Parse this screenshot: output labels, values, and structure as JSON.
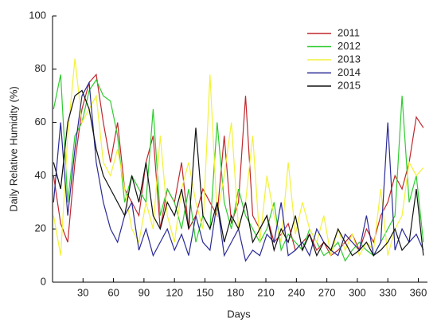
{
  "chart_data": {
    "type": "line",
    "x_label": "Days",
    "y_label": "Daily  Relative Humidity (%)",
    "x": [
      1,
      8,
      15,
      22,
      29,
      36,
      43,
      50,
      57,
      64,
      71,
      78,
      85,
      92,
      99,
      106,
      113,
      120,
      127,
      134,
      141,
      148,
      155,
      162,
      169,
      176,
      183,
      190,
      197,
      204,
      211,
      218,
      225,
      232,
      239,
      246,
      253,
      260,
      267,
      274,
      281,
      288,
      295,
      302,
      309,
      316,
      323,
      330,
      337,
      344,
      351,
      358,
      365
    ],
    "series": [
      {
        "name": "2011",
        "color": "#c0272d",
        "values": [
          40,
          22,
          15,
          45,
          65,
          75,
          78,
          60,
          45,
          60,
          35,
          30,
          25,
          45,
          55,
          20,
          35,
          30,
          45,
          20,
          25,
          35,
          30,
          25,
          55,
          22,
          30,
          70,
          25,
          20,
          25,
          15,
          18,
          22,
          12,
          15,
          18,
          12,
          15,
          10,
          12,
          15,
          18,
          12,
          20,
          15,
          25,
          30,
          40,
          35,
          45,
          62,
          58
        ]
      },
      {
        "name": "2012",
        "color": "#2fcc2f",
        "values": [
          65,
          78,
          30,
          55,
          60,
          72,
          76,
          70,
          68,
          55,
          30,
          40,
          35,
          30,
          65,
          25,
          35,
          30,
          20,
          35,
          15,
          25,
          20,
          60,
          30,
          20,
          35,
          25,
          20,
          15,
          20,
          30,
          12,
          18,
          15,
          12,
          20,
          15,
          10,
          12,
          15,
          8,
          12,
          15,
          12,
          10,
          15,
          20,
          25,
          70,
          30,
          40,
          15
        ]
      },
      {
        "name": "2013",
        "color": "#f2f23a",
        "values": [
          25,
          10,
          55,
          84,
          60,
          65,
          70,
          45,
          40,
          50,
          35,
          20,
          15,
          30,
          20,
          55,
          25,
          15,
          35,
          45,
          30,
          20,
          78,
          25,
          40,
          60,
          20,
          30,
          55,
          15,
          40,
          25,
          15,
          45,
          18,
          30,
          20,
          15,
          25,
          10,
          20,
          12,
          18,
          10,
          15,
          12,
          35,
          10,
          20,
          25,
          45,
          40,
          43
        ]
      },
      {
        "name": "2014",
        "color": "#2a2a96",
        "values": [
          30,
          60,
          25,
          50,
          70,
          75,
          45,
          30,
          20,
          15,
          25,
          30,
          12,
          20,
          10,
          15,
          20,
          12,
          18,
          10,
          25,
          15,
          12,
          30,
          10,
          15,
          20,
          8,
          12,
          10,
          18,
          15,
          30,
          10,
          12,
          15,
          10,
          20,
          15,
          12,
          10,
          18,
          15,
          12,
          25,
          10,
          15,
          60,
          12,
          20,
          15,
          18,
          12
        ]
      },
      {
        "name": "2015",
        "color": "#111111",
        "values": [
          45,
          35,
          60,
          70,
          72,
          65,
          50,
          40,
          35,
          30,
          25,
          40,
          30,
          45,
          25,
          20,
          30,
          25,
          35,
          20,
          58,
          25,
          20,
          30,
          15,
          25,
          20,
          30,
          15,
          20,
          25,
          12,
          20,
          15,
          25,
          12,
          18,
          10,
          15,
          12,
          20,
          15,
          10,
          12,
          15,
          10,
          12,
          15,
          20,
          12,
          15,
          35,
          10
        ]
      }
    ],
    "xlim": [
      0,
      369
    ],
    "xticks": [
      30,
      60,
      90,
      120,
      150,
      180,
      210,
      240,
      270,
      300,
      330,
      360
    ],
    "ylim": [
      0,
      100
    ],
    "yticks": [
      0,
      20,
      40,
      60,
      80,
      100
    ],
    "legend": "upper right",
    "grid": false
  }
}
